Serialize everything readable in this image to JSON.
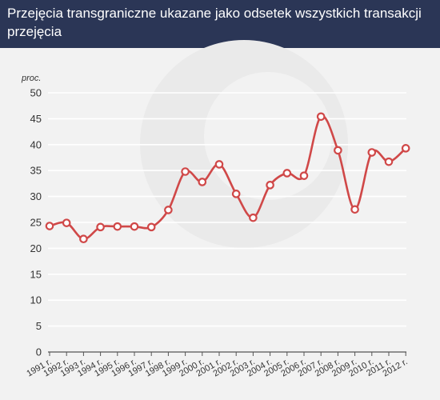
{
  "colors": {
    "header_background": "#2b3656",
    "plot_background": "#f2f2f2",
    "series": "#d04848",
    "gridline": "#ffffff"
  },
  "chart_data": {
    "type": "line",
    "title": "Przejęcia transgraniczne ukazane jako odsetek wszystkich transakcji przejęcia",
    "ylabel": "proc.",
    "xlabel": "",
    "ylim": [
      0,
      50
    ],
    "yticks": [
      0,
      5,
      10,
      15,
      20,
      25,
      30,
      35,
      40,
      45,
      50
    ],
    "grid": true,
    "smooth": true,
    "categories": [
      "1991 r.",
      "1992 r.",
      "1993 r.",
      "1994 r.",
      "1995 r.",
      "1996 r.",
      "1997 r.",
      "1998 r.",
      "1999 r.",
      "2000 r.",
      "2001 r.",
      "2002 r.",
      "2003 r.",
      "2004 r.",
      "2005 r.",
      "2006 r.",
      "2007 r.",
      "2008 r.",
      "2009 r.",
      "2010 r.",
      "2011 r.",
      "2012 r."
    ],
    "values": [
      24.3,
      24.9,
      21.8,
      24.1,
      24.2,
      24.2,
      24.1,
      27.4,
      34.8,
      32.8,
      36.2,
      30.5,
      25.9,
      32.2,
      34.5,
      34.0,
      45.4,
      38.9,
      27.5,
      38.5,
      36.7,
      39.3
    ]
  }
}
